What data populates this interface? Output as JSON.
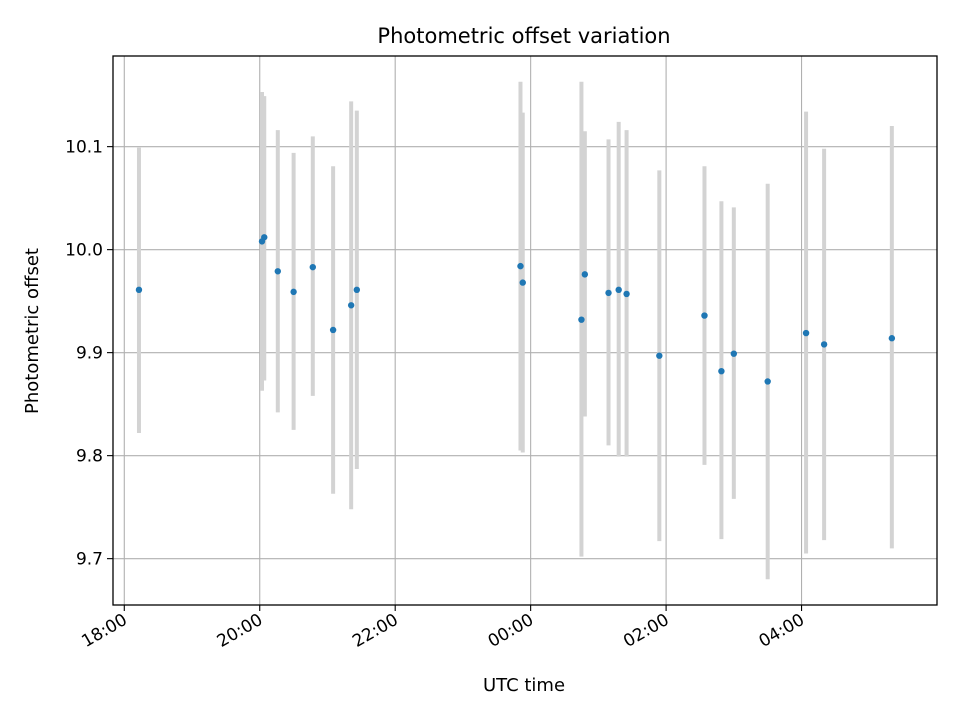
{
  "chart_data": {
    "type": "scatter",
    "title": "Photometric offset variation",
    "xlabel": "UTC time",
    "ylabel": "Photometric offset",
    "x_axis_kind": "time",
    "xlim": [
      "17:50",
      "06:00"
    ],
    "ylim": [
      9.655,
      10.188
    ],
    "xticks": [
      "18:00",
      "20:00",
      "22:00",
      "00:00",
      "02:00",
      "04:00"
    ],
    "yticks": [
      9.7,
      9.8,
      9.9,
      10.0,
      10.1
    ],
    "grid": true,
    "colors": {
      "marker": "#1f77b4",
      "errorbar": "#d3d3d3",
      "grid": "#b0b0b0"
    },
    "points": [
      {
        "t": "18:13",
        "y": 9.961,
        "err_low": 9.822,
        "err_high": 10.099
      },
      {
        "t": "20:02",
        "y": 10.008,
        "err_low": 9.863,
        "err_high": 10.153
      },
      {
        "t": "20:04",
        "y": 10.012,
        "err_low": 9.873,
        "err_high": 10.149
      },
      {
        "t": "20:16",
        "y": 9.979,
        "err_low": 9.842,
        "err_high": 10.116
      },
      {
        "t": "20:30",
        "y": 9.959,
        "err_low": 9.825,
        "err_high": 10.094
      },
      {
        "t": "20:47",
        "y": 9.983,
        "err_low": 9.858,
        "err_high": 10.11
      },
      {
        "t": "21:05",
        "y": 9.922,
        "err_low": 9.763,
        "err_high": 10.081
      },
      {
        "t": "21:21",
        "y": 9.946,
        "err_low": 9.748,
        "err_high": 10.144
      },
      {
        "t": "21:26",
        "y": 9.961,
        "err_low": 9.787,
        "err_high": 10.135
      },
      {
        "t": "23:51",
        "y": 9.984,
        "err_low": 9.805,
        "err_high": 10.163
      },
      {
        "t": "23:53",
        "y": 9.968,
        "err_low": 9.803,
        "err_high": 10.133
      },
      {
        "t": "00:45",
        "y": 9.932,
        "err_low": 9.702,
        "err_high": 10.163
      },
      {
        "t": "00:48",
        "y": 9.976,
        "err_low": 9.838,
        "err_high": 10.115
      },
      {
        "t": "01:09",
        "y": 9.958,
        "err_low": 9.81,
        "err_high": 10.107
      },
      {
        "t": "01:18",
        "y": 9.961,
        "err_low": 9.799,
        "err_high": 10.124
      },
      {
        "t": "01:25",
        "y": 9.957,
        "err_low": 9.799,
        "err_high": 10.116
      },
      {
        "t": "01:54",
        "y": 9.897,
        "err_low": 9.717,
        "err_high": 10.077
      },
      {
        "t": "02:34",
        "y": 9.936,
        "err_low": 9.791,
        "err_high": 10.081
      },
      {
        "t": "02:49",
        "y": 9.882,
        "err_low": 9.719,
        "err_high": 10.047
      },
      {
        "t": "03:00",
        "y": 9.899,
        "err_low": 9.758,
        "err_high": 10.041
      },
      {
        "t": "03:30",
        "y": 9.872,
        "err_low": 9.68,
        "err_high": 10.064
      },
      {
        "t": "04:04",
        "y": 9.919,
        "err_low": 9.705,
        "err_high": 10.134
      },
      {
        "t": "04:20",
        "y": 9.908,
        "err_low": 9.718,
        "err_high": 10.098
      },
      {
        "t": "05:20",
        "y": 9.914,
        "err_low": 9.71,
        "err_high": 10.12
      }
    ]
  }
}
